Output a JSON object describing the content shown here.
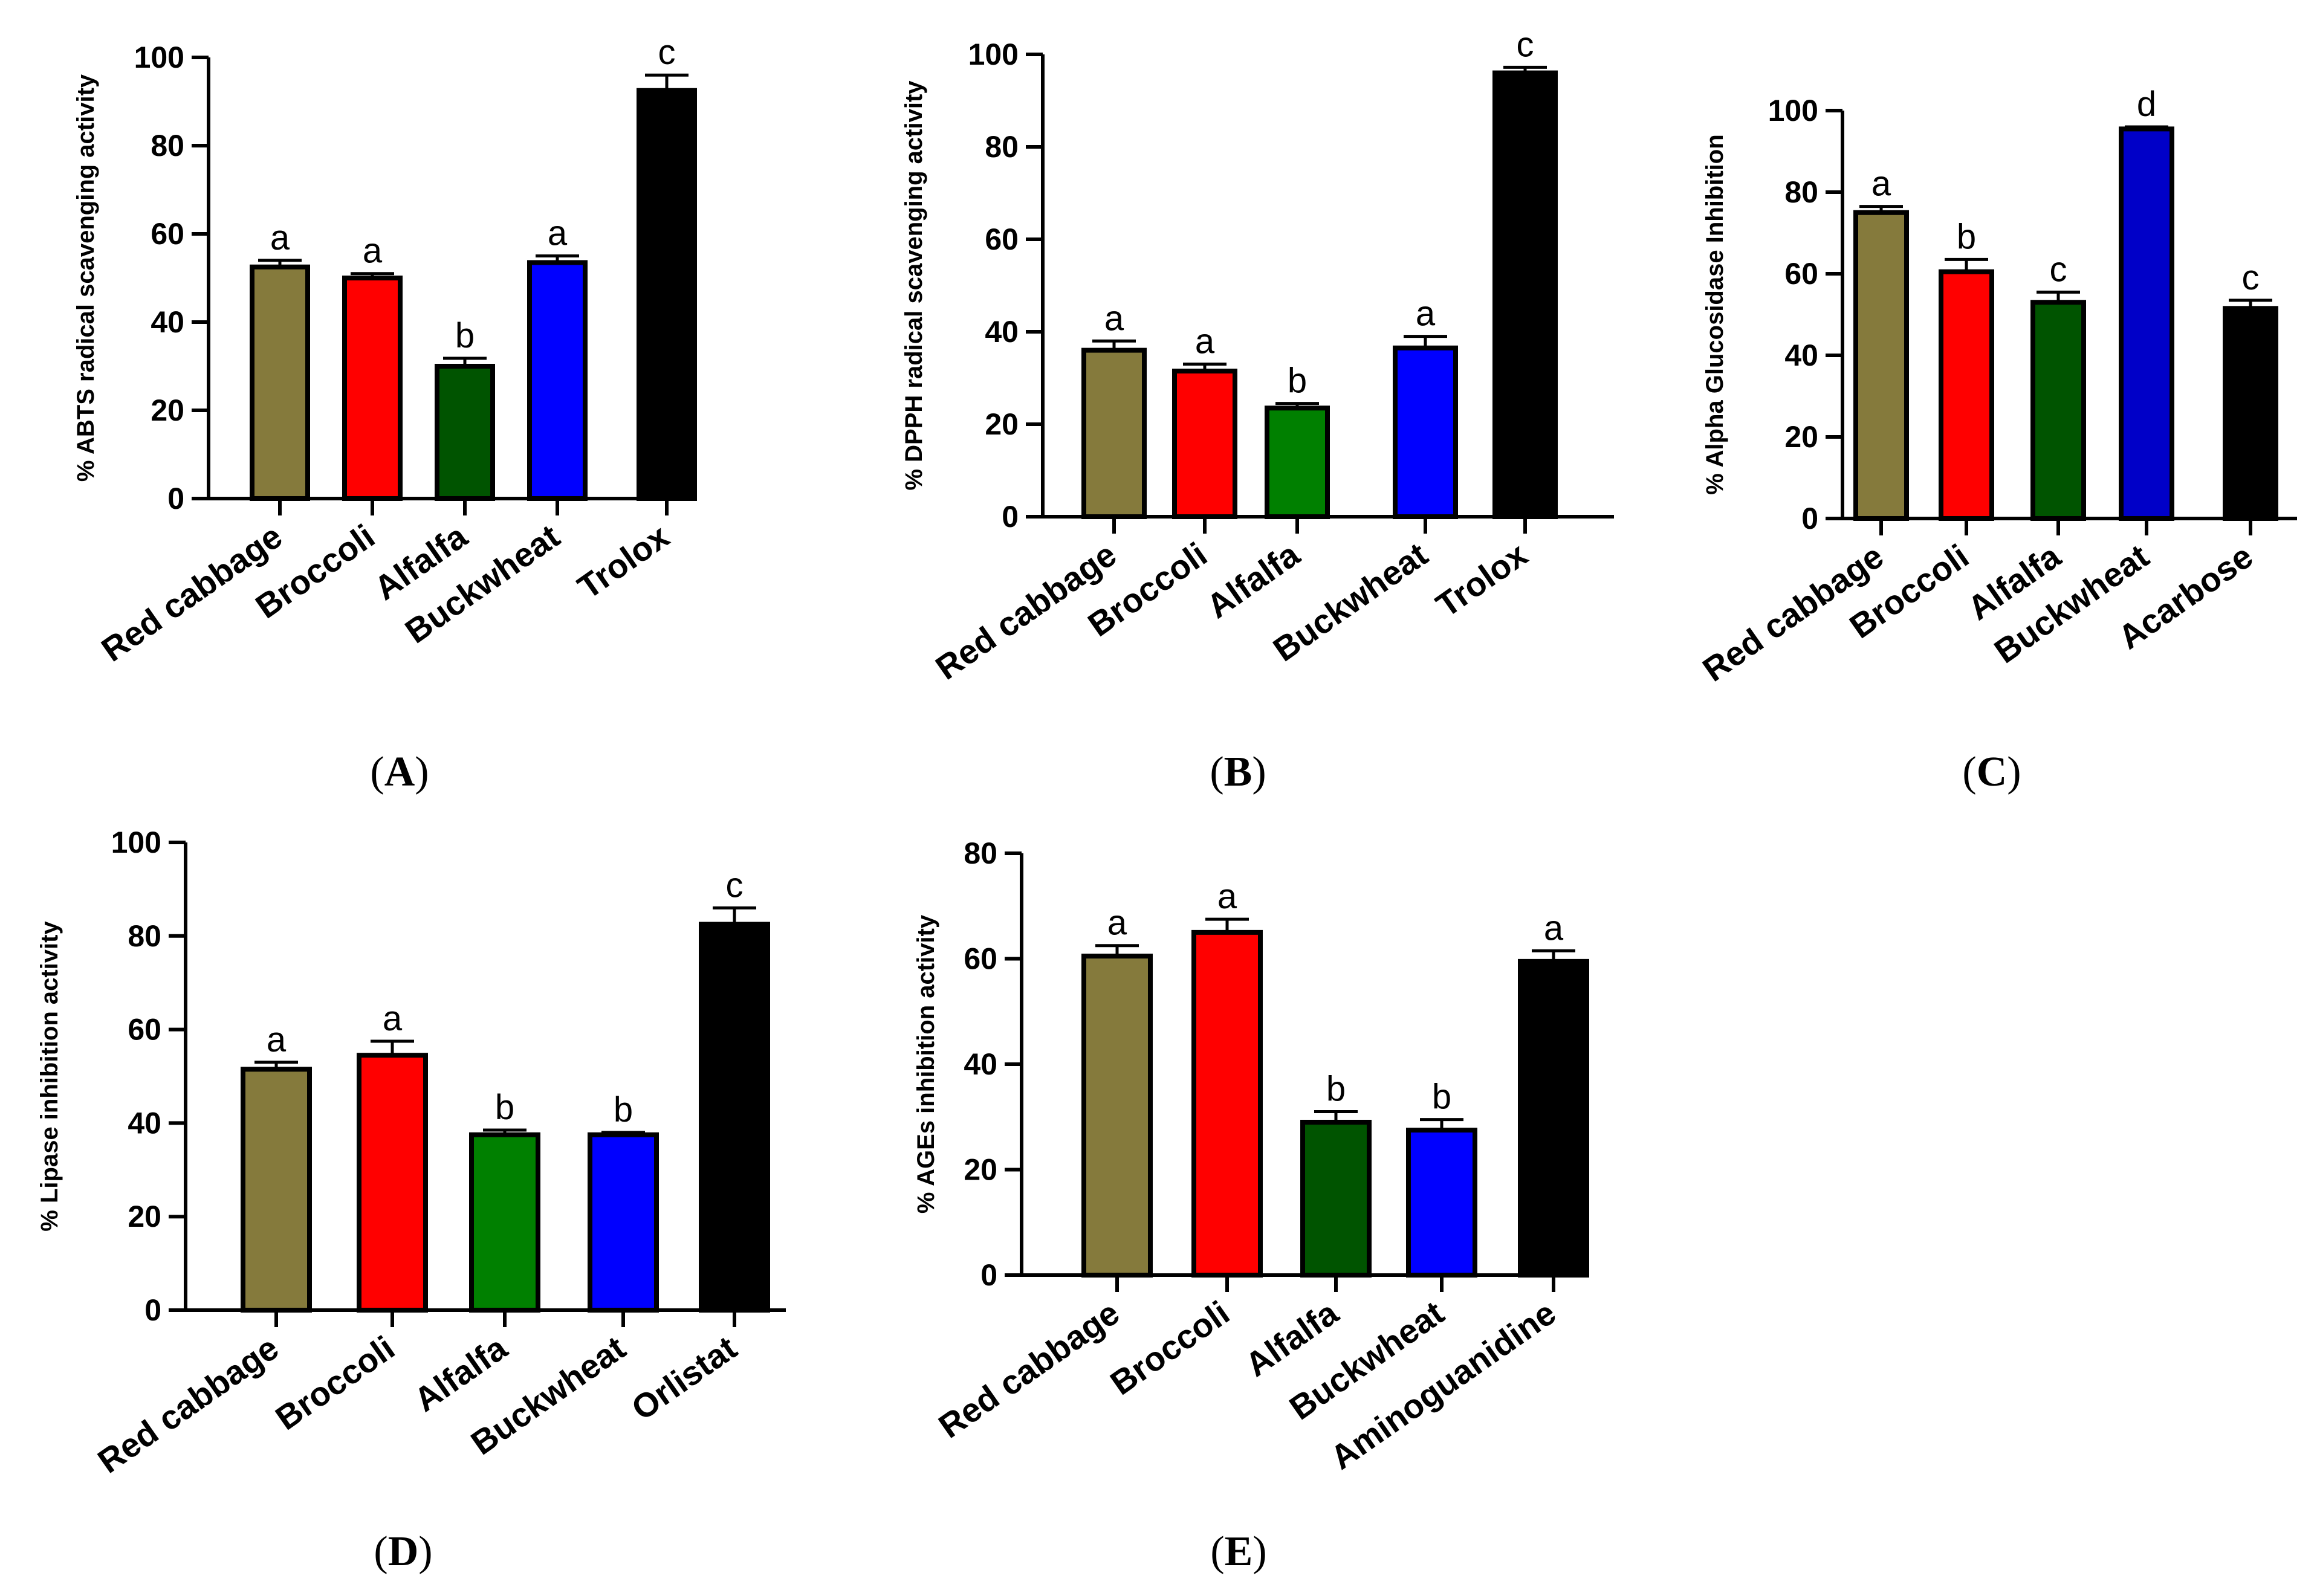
{
  "chart_data": [
    {
      "type": "bar",
      "panel": "A",
      "ylabel": "% ABTS radical scavenging activity",
      "ylim": [
        0,
        100
      ],
      "yticks": [
        0,
        20,
        40,
        60,
        80,
        100
      ],
      "categories": [
        "Red cabbage",
        "Broccoli",
        "Alfalfa",
        "Buckwheat",
        "Trolox"
      ],
      "values": [
        52.5,
        50,
        30,
        53.5,
        92.5
      ],
      "errors": [
        1.5,
        1.0,
        1.8,
        1.5,
        3.5
      ],
      "letters": [
        "a",
        "a",
        "b",
        "a",
        "c"
      ],
      "colors": [
        "#857a3c",
        "#ff0000",
        "#005400",
        "#0000ff",
        "#000000"
      ]
    },
    {
      "type": "bar",
      "panel": "B",
      "ylabel": "% DPPH radical scavenging activity",
      "ylim": [
        0,
        100
      ],
      "yticks": [
        0,
        20,
        40,
        60,
        80,
        100
      ],
      "categories": [
        "Red cabbage",
        "Broccoli",
        "Alfalfa",
        "Buckwheat",
        "Trolox"
      ],
      "values": [
        36,
        31.5,
        23.5,
        36.5,
        96
      ],
      "errors": [
        2.0,
        1.5,
        1.0,
        2.5,
        1.2
      ],
      "letters": [
        "a",
        "a",
        "b",
        "a",
        "c"
      ],
      "colors": [
        "#857a3c",
        "#ff0000",
        "#008000",
        "#0000ff",
        "#000000"
      ]
    },
    {
      "type": "bar",
      "panel": "C",
      "ylabel": "% Alpha Glucosidase Inhibition",
      "ylim": [
        0,
        100
      ],
      "yticks": [
        0,
        20,
        40,
        60,
        80,
        100
      ],
      "categories": [
        "Red cabbage",
        "Broccoli",
        "Alfalfa",
        "Buckwheat",
        "Acarbose"
      ],
      "values": [
        75,
        60.5,
        53,
        95.5,
        51.5
      ],
      "errors": [
        1.5,
        3.0,
        2.5,
        0.5,
        2.0
      ],
      "letters": [
        "a",
        "b",
        "c",
        "d",
        "c"
      ],
      "colors": [
        "#857a3c",
        "#ff0000",
        "#005400",
        "#0000c8",
        "#000000"
      ]
    },
    {
      "type": "bar",
      "panel": "D",
      "ylabel": "% Lipase inhibition activity",
      "ylim": [
        0,
        100
      ],
      "yticks": [
        0,
        20,
        40,
        60,
        80,
        100
      ],
      "categories": [
        "Red cabbage",
        "Broccoli",
        "Alfalfa",
        "Buckwheat",
        "Orlistat"
      ],
      "values": [
        51.5,
        54.5,
        37.5,
        37.5,
        82.5
      ],
      "errors": [
        1.5,
        3.0,
        1.0,
        0.5,
        3.5
      ],
      "letters": [
        "a",
        "a",
        "b",
        "b",
        "c"
      ],
      "colors": [
        "#857a3c",
        "#ff0000",
        "#008000",
        "#0000ff",
        "#000000"
      ]
    },
    {
      "type": "bar",
      "panel": "E",
      "ylabel": "% AGEs inhibition activity",
      "ylim": [
        0,
        80
      ],
      "yticks": [
        0,
        20,
        40,
        60,
        80
      ],
      "categories": [
        "Red cabbage",
        "Broccoli",
        "Alfalfa",
        "Buckwheat",
        "Aminoguanidine"
      ],
      "values": [
        60.5,
        65,
        29,
        27.5,
        59.5
      ],
      "errors": [
        2.0,
        2.5,
        2.0,
        2.0,
        2.0
      ],
      "letters": [
        "a",
        "a",
        "b",
        "b",
        "a"
      ],
      "colors": [
        "#857a3c",
        "#ff0000",
        "#005400",
        "#0000ff",
        "#000000"
      ]
    }
  ],
  "panel_labels": [
    {
      "open": "(",
      "letter": "A",
      "close": ")"
    },
    {
      "open": "(",
      "letter": "B",
      "close": ")"
    },
    {
      "open": "(",
      "letter": "C",
      "close": ")"
    },
    {
      "open": "(",
      "letter": "D",
      "close": ")"
    },
    {
      "open": "(",
      "letter": "E",
      "close": ")"
    }
  ]
}
